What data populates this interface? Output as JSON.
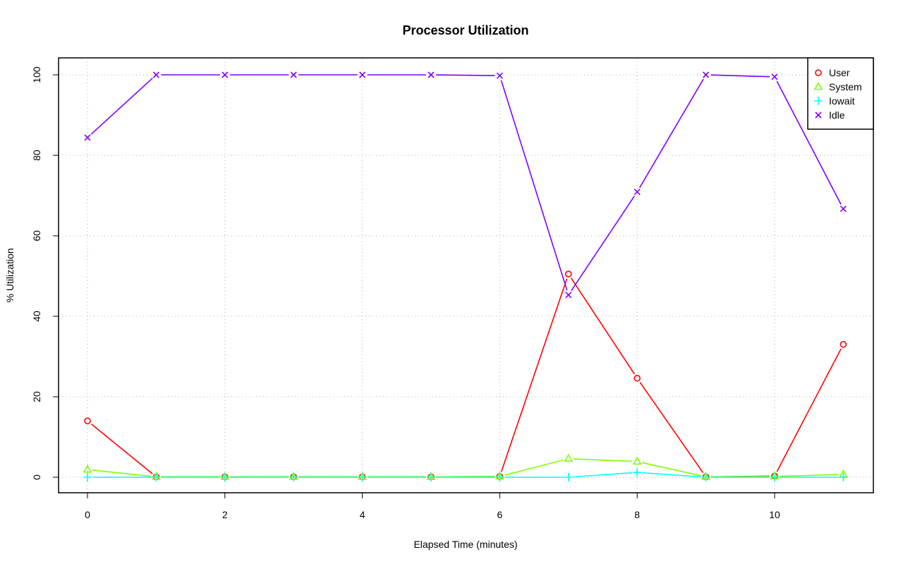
{
  "chart_data": {
    "type": "line",
    "title": "Processor Utilization",
    "xlabel": "Elapsed Time (minutes)",
    "ylabel": "% Utilization",
    "xlim": [
      -0.4,
      11.4
    ],
    "ylim": [
      -4,
      104
    ],
    "xticks": [
      0,
      2,
      4,
      6,
      8,
      10
    ],
    "yticks": [
      0,
      20,
      40,
      60,
      80,
      100
    ],
    "grid": true,
    "legend_position": "top-right",
    "x": [
      0,
      1,
      2,
      3,
      4,
      5,
      6,
      7,
      8,
      9,
      10,
      11
    ],
    "series": [
      {
        "name": "User",
        "color": "#FF0000",
        "marker": "circle",
        "values": [
          14.0,
          0.1,
          0.1,
          0.1,
          0.1,
          0.1,
          0.2,
          50.5,
          24.6,
          0.1,
          0.3,
          33.0
        ]
      },
      {
        "name": "System",
        "color": "#80FF00",
        "marker": "triangle",
        "values": [
          1.9,
          0.1,
          0.1,
          0.1,
          0.1,
          0.1,
          0.2,
          4.6,
          3.9,
          0.1,
          0.2,
          0.7
        ]
      },
      {
        "name": "Iowait",
        "color": "#00FFFF",
        "marker": "plus",
        "values": [
          0,
          0,
          0,
          0,
          0,
          0,
          0,
          0,
          1.2,
          0,
          0,
          0
        ]
      },
      {
        "name": "Idle",
        "color": "#8000FF",
        "marker": "cross",
        "values": [
          84.4,
          100,
          100,
          100,
          100,
          100,
          99.8,
          45.3,
          70.9,
          100,
          99.5,
          66.7
        ]
      }
    ]
  }
}
